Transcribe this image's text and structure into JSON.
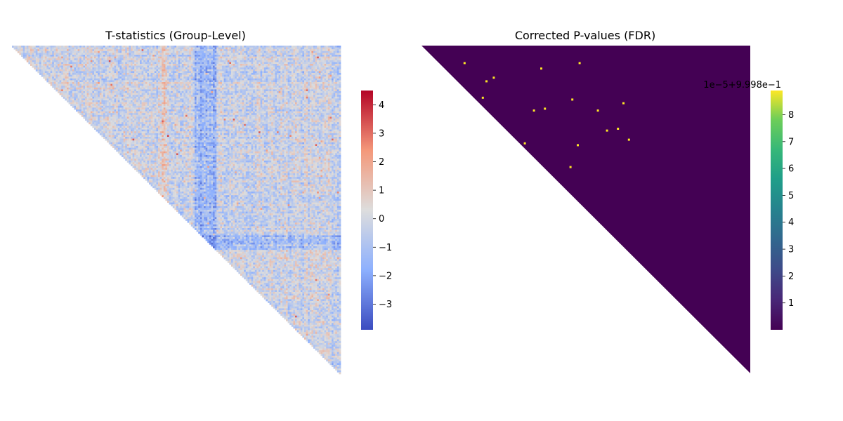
{
  "chart_data": [
    {
      "type": "heatmap",
      "title": "T-statistics (Group-Level)",
      "mask": "lower-triangle",
      "colormap": "coolwarm",
      "colorbar": {
        "range": [
          -3.9,
          4.5
        ],
        "ticks": [
          -3,
          -2,
          -1,
          0,
          1,
          2,
          3,
          4
        ],
        "tick_labels": [
          "−3",
          "−2",
          "−1",
          "0",
          "1",
          "2",
          "3",
          "4"
        ]
      },
      "colors": [
        "#3b4cc0",
        "#dddddd",
        "#b40426"
      ]
    },
    {
      "type": "heatmap",
      "title": "Corrected P-values (FDR)",
      "mask": "lower-triangle",
      "colormap": "viridis",
      "background_value": 0,
      "colorbar": {
        "range": [
          0,
          8.9
        ],
        "ticks": [
          1,
          2,
          3,
          4,
          5,
          6,
          7,
          8
        ],
        "tick_labels": [
          "1",
          "2",
          "3",
          "4",
          "5",
          "6",
          "7",
          "8"
        ],
        "offset_text": "1e−5+9.998e−1"
      },
      "highlight_cells": [
        {
          "row": 9,
          "col": 23
        },
        {
          "row": 12,
          "col": 65
        },
        {
          "row": 9,
          "col": 86
        },
        {
          "row": 17,
          "col": 39
        },
        {
          "row": 19,
          "col": 35
        },
        {
          "row": 28,
          "col": 33
        },
        {
          "row": 29,
          "col": 82
        },
        {
          "row": 31,
          "col": 110
        },
        {
          "row": 35,
          "col": 61
        },
        {
          "row": 34,
          "col": 67
        },
        {
          "row": 35,
          "col": 96
        },
        {
          "row": 45,
          "col": 107
        },
        {
          "row": 46,
          "col": 101
        },
        {
          "row": 51,
          "col": 113
        },
        {
          "row": 53,
          "col": 56
        },
        {
          "row": 54,
          "col": 85
        },
        {
          "row": 66,
          "col": 81
        }
      ],
      "colors": [
        "#440154",
        "#fde725"
      ]
    }
  ]
}
